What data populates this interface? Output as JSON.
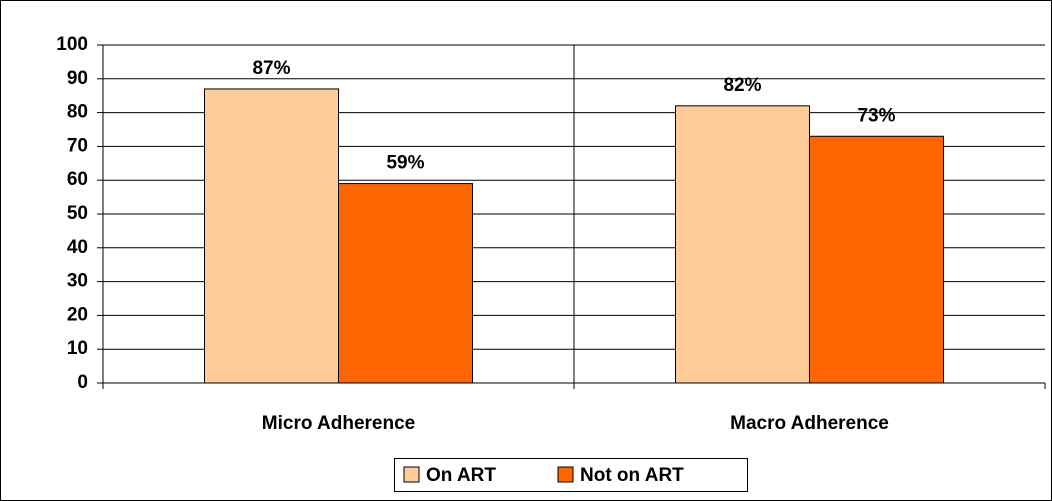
{
  "chart_data": {
    "type": "bar",
    "categories": [
      "Micro Adherence",
      "Macro Adherence"
    ],
    "series": [
      {
        "name": "On ART",
        "color": "#ffcc99",
        "values": [
          87,
          82
        ],
        "value_labels": [
          "87%",
          "82%"
        ]
      },
      {
        "name": "Not on ART",
        "color": "#ff6600",
        "values": [
          59,
          73
        ],
        "value_labels": [
          "59%",
          "73%"
        ]
      }
    ],
    "ylim": [
      0,
      100
    ],
    "yticks": [
      0,
      10,
      20,
      30,
      40,
      50,
      60,
      70,
      80,
      90,
      100
    ],
    "grid": true
  }
}
